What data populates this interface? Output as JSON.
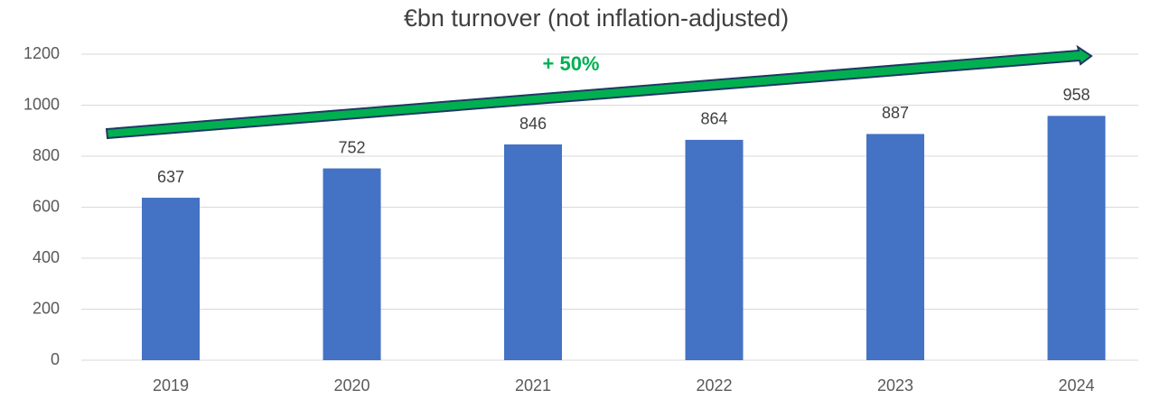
{
  "chart_data": {
    "type": "bar",
    "title": "€bn turnover (not inflation-adjusted)",
    "annotation": "+ 50%",
    "categories": [
      "2019",
      "2020",
      "2021",
      "2022",
      "2023",
      "2024"
    ],
    "values": [
      637,
      752,
      846,
      864,
      887,
      958
    ],
    "color": "#4472c4",
    "ylim": [
      0,
      1200
    ],
    "yticks": [
      0,
      200,
      400,
      600,
      800,
      1000,
      1200
    ],
    "grid": true
  }
}
